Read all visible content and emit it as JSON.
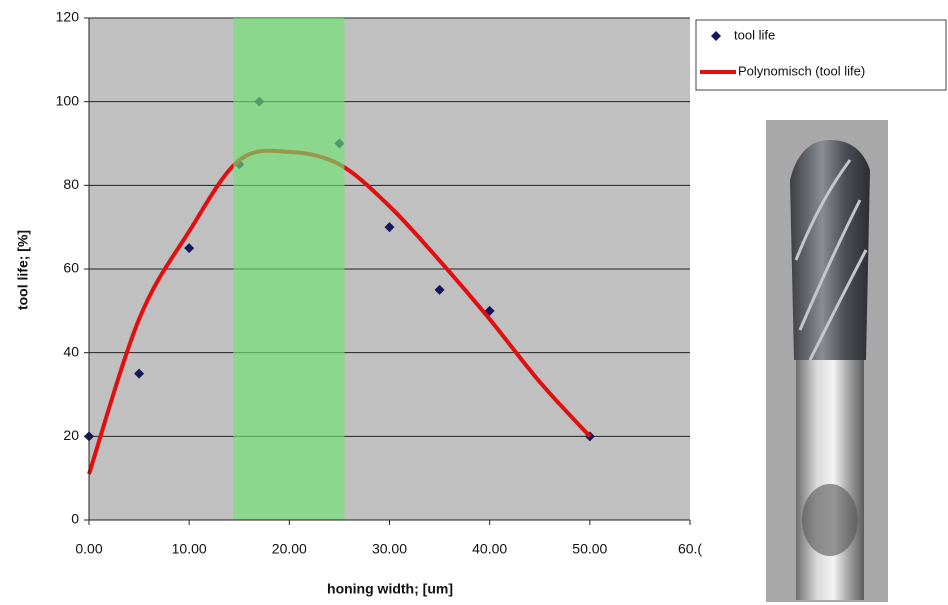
{
  "chart_data": {
    "type": "scatter",
    "x_label": "honing width; [um]",
    "y_label": "tool life; [%]",
    "xlim": [
      0,
      60
    ],
    "ylim": [
      0,
      120
    ],
    "xticks": [
      {
        "value": 0,
        "label": "0.00"
      },
      {
        "value": 10,
        "label": "10.00"
      },
      {
        "value": 20,
        "label": "20.00"
      },
      {
        "value": 30,
        "label": "30.00"
      },
      {
        "value": 40,
        "label": "40.00"
      },
      {
        "value": 50,
        "label": "50.00"
      },
      {
        "value": 60,
        "label": "60.("
      }
    ],
    "yticks": [
      0,
      20,
      40,
      60,
      80,
      100,
      120
    ],
    "grid": true,
    "plot_background": "#c0c0c0",
    "highlight_x_range": [
      14.4,
      25.5
    ],
    "highlight_color": "#6fe36f",
    "legend_position": "right",
    "series": [
      {
        "name": "tool life",
        "kind": "points",
        "color": "#16165e",
        "x": [
          0,
          5,
          10,
          15,
          17,
          25,
          30,
          35,
          40,
          50
        ],
        "values": [
          20,
          35,
          65,
          85,
          100,
          90,
          70,
          55,
          50,
          20
        ]
      },
      {
        "name": "Polynomisch (tool life)",
        "kind": "line",
        "color": "#e01010",
        "x": [
          0,
          5,
          10,
          15,
          20,
          25,
          30,
          35,
          40,
          45,
          50
        ],
        "values": [
          11,
          48,
          69,
          86,
          88,
          85,
          75,
          62,
          48,
          33,
          20
        ]
      }
    ]
  }
}
